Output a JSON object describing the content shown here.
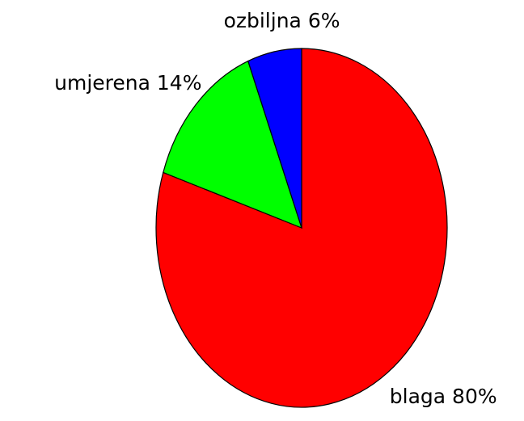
{
  "chart_data": {
    "type": "pie",
    "categories": [
      "blaga",
      "umjerena",
      "ozbiljna"
    ],
    "values": [
      80,
      14,
      6
    ],
    "value_labels": [
      "blaga 80%",
      "umjerena 14%",
      "ozbiljna 6%"
    ],
    "colors": [
      "#ff0000",
      "#00ff00",
      "#0000ff"
    ]
  }
}
